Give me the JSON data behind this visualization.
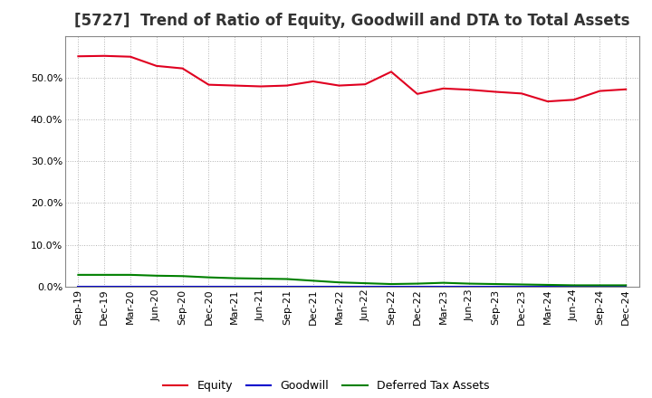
{
  "title": "[5727]  Trend of Ratio of Equity, Goodwill and DTA to Total Assets",
  "x_labels": [
    "Sep-19",
    "Dec-19",
    "Mar-20",
    "Jun-20",
    "Sep-20",
    "Dec-20",
    "Mar-21",
    "Jun-21",
    "Sep-21",
    "Dec-21",
    "Mar-22",
    "Jun-22",
    "Sep-22",
    "Dec-22",
    "Mar-23",
    "Jun-23",
    "Sep-23",
    "Dec-23",
    "Mar-24",
    "Jun-24",
    "Sep-24",
    "Dec-24"
  ],
  "equity": [
    0.551,
    0.552,
    0.55,
    0.528,
    0.522,
    0.483,
    0.481,
    0.479,
    0.481,
    0.491,
    0.481,
    0.484,
    0.514,
    0.461,
    0.474,
    0.471,
    0.466,
    0.462,
    0.443,
    0.447,
    0.468,
    0.472
  ],
  "goodwill": [
    0.0,
    0.0,
    0.0,
    0.0,
    0.0,
    0.0,
    0.0,
    0.0,
    0.0,
    0.0,
    0.0,
    0.0,
    0.0,
    0.0,
    0.0,
    0.0,
    0.0,
    0.0,
    0.0,
    0.0,
    0.0,
    0.0
  ],
  "dta": [
    0.028,
    0.028,
    0.028,
    0.026,
    0.025,
    0.022,
    0.02,
    0.019,
    0.018,
    0.014,
    0.01,
    0.008,
    0.006,
    0.007,
    0.009,
    0.007,
    0.006,
    0.005,
    0.004,
    0.003,
    0.003,
    0.003
  ],
  "equity_color": "#e00020",
  "goodwill_color": "#0000cc",
  "dta_color": "#008000",
  "bg_color": "#ffffff",
  "plot_bg_color": "#ffffff",
  "grid_color": "#aaaaaa",
  "ylim": [
    0.0,
    0.6
  ],
  "yticks": [
    0.0,
    0.1,
    0.2,
    0.3,
    0.4,
    0.5
  ],
  "legend_labels": [
    "Equity",
    "Goodwill",
    "Deferred Tax Assets"
  ],
  "title_fontsize": 12,
  "tick_fontsize": 8,
  "legend_fontsize": 9
}
